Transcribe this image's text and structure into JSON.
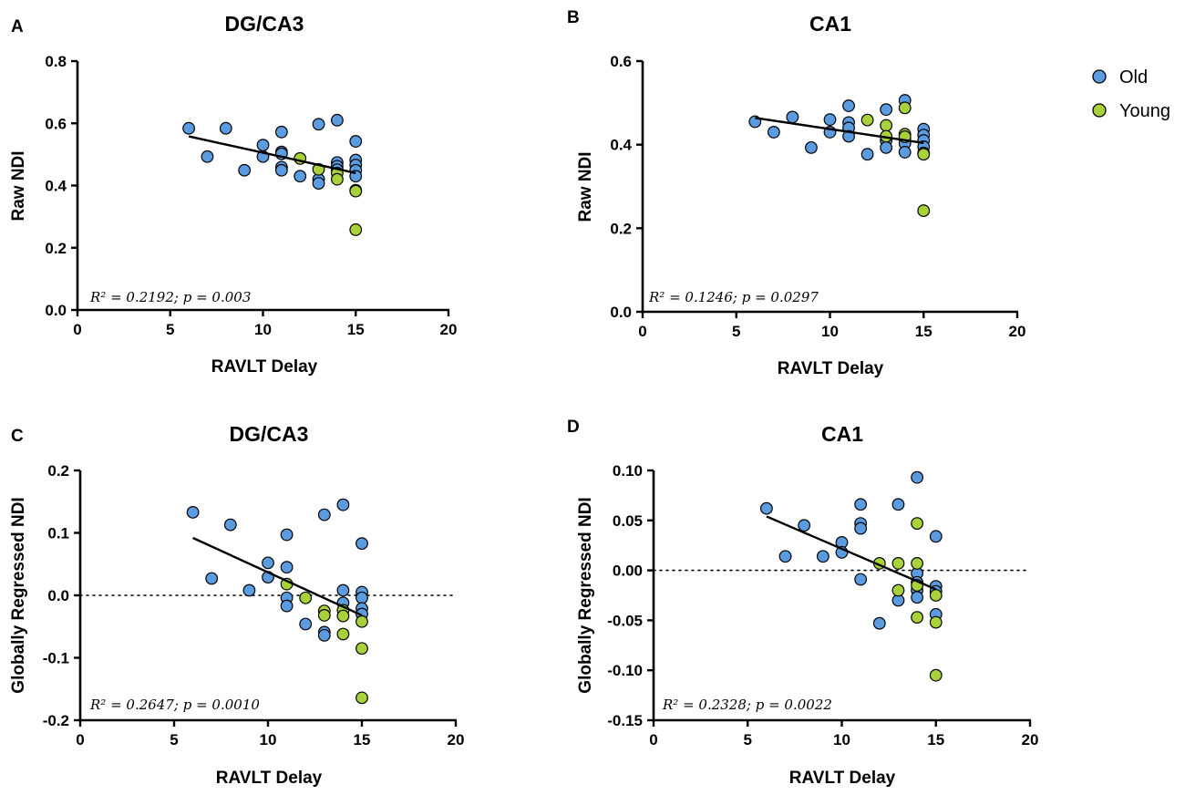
{
  "colors": {
    "old": "#5B9BE0",
    "young": "#A9D13A",
    "axis": "#000000"
  },
  "legend": {
    "position": "top-right",
    "entries": [
      {
        "label": "Old",
        "color": "#5B9BE0"
      },
      {
        "label": "Young",
        "color": "#A9D13A"
      }
    ]
  },
  "chart_data": [
    {
      "type": "scatter",
      "panel": "A",
      "title": "DG/CA3",
      "xlabel": "RAVLT Delay",
      "ylabel": "Raw NDI",
      "xlim": [
        0,
        20
      ],
      "ylim": [
        0,
        0.8
      ],
      "xticks": [
        0,
        5,
        10,
        15,
        20
      ],
      "yticks": [
        0.0,
        0.2,
        0.4,
        0.6,
        0.8
      ],
      "ytick_labels": [
        "0.0",
        "0.2",
        "0.4",
        "0.6",
        "0.8"
      ],
      "zero_line": false,
      "annotation": "R² = 0.2192; p = 0.003",
      "regression": {
        "x": [
          6,
          15
        ],
        "y": [
          0.558,
          0.44
        ]
      },
      "series": [
        {
          "name": "Old",
          "points": [
            [
              6,
              0.584
            ],
            [
              7,
              0.493
            ],
            [
              8,
              0.584
            ],
            [
              9,
              0.449
            ],
            [
              10,
              0.53
            ],
            [
              10,
              0.493
            ],
            [
              11,
              0.572
            ],
            [
              11,
              0.508
            ],
            [
              11,
              0.502
            ],
            [
              11,
              0.459
            ],
            [
              11,
              0.449
            ],
            [
              12,
              0.43
            ],
            [
              13,
              0.597
            ],
            [
              13,
              0.42
            ],
            [
              13,
              0.407
            ],
            [
              14,
              0.61
            ],
            [
              14,
              0.474
            ],
            [
              14,
              0.462
            ],
            [
              14,
              0.451
            ],
            [
              15,
              0.542
            ],
            [
              15,
              0.482
            ],
            [
              15,
              0.466
            ],
            [
              15,
              0.449
            ],
            [
              15,
              0.43
            ]
          ]
        },
        {
          "name": "Young",
          "points": [
            [
              12,
              0.487
            ],
            [
              13,
              0.452
            ],
            [
              14,
              0.44
            ],
            [
              14,
              0.42
            ],
            [
              15,
              0.385
            ],
            [
              15,
              0.382
            ],
            [
              15,
              0.258
            ]
          ]
        }
      ]
    },
    {
      "type": "scatter",
      "panel": "B",
      "title": "CA1",
      "xlabel": "RAVLT Delay",
      "ylabel": "Raw NDI",
      "xlim": [
        0,
        20
      ],
      "ylim": [
        0,
        0.6
      ],
      "xticks": [
        0,
        5,
        10,
        15,
        20
      ],
      "yticks": [
        0.0,
        0.2,
        0.4,
        0.6
      ],
      "ytick_labels": [
        "0.0",
        "0.2",
        "0.4",
        "0.6"
      ],
      "zero_line": false,
      "annotation": "R² = 0.1246; p = 0.0297",
      "regression": {
        "x": [
          6,
          15
        ],
        "y": [
          0.464,
          0.404
        ]
      },
      "series": [
        {
          "name": "Old",
          "points": [
            [
              6,
              0.455
            ],
            [
              7,
              0.43
            ],
            [
              8,
              0.466
            ],
            [
              9,
              0.393
            ],
            [
              10,
              0.46
            ],
            [
              10,
              0.43
            ],
            [
              11,
              0.493
            ],
            [
              11,
              0.453
            ],
            [
              11,
              0.44
            ],
            [
              11,
              0.42
            ],
            [
              12,
              0.377
            ],
            [
              13,
              0.484
            ],
            [
              13,
              0.41
            ],
            [
              13,
              0.393
            ],
            [
              14,
              0.506
            ],
            [
              14,
              0.415
            ],
            [
              14,
              0.403
            ],
            [
              14,
              0.382
            ],
            [
              15,
              0.437
            ],
            [
              15,
              0.423
            ],
            [
              15,
              0.41
            ],
            [
              15,
              0.395
            ],
            [
              15,
              0.38
            ]
          ]
        },
        {
          "name": "Young",
          "points": [
            [
              12,
              0.459
            ],
            [
              13,
              0.446
            ],
            [
              13,
              0.42
            ],
            [
              14,
              0.488
            ],
            [
              14,
              0.425
            ],
            [
              14,
              0.419
            ],
            [
              15,
              0.377
            ],
            [
              15,
              0.242
            ]
          ]
        }
      ]
    },
    {
      "type": "scatter",
      "panel": "C",
      "title": "DG/CA3",
      "xlabel": "RAVLT Delay",
      "ylabel": "Globally Regressed NDI",
      "xlim": [
        0,
        20
      ],
      "ylim": [
        -0.2,
        0.2
      ],
      "xticks": [
        0,
        5,
        10,
        15,
        20
      ],
      "yticks": [
        -0.2,
        -0.1,
        0.0,
        0.1,
        0.2
      ],
      "ytick_labels": [
        "-0.2",
        "-0.1",
        "0.0",
        "0.1",
        "0.2"
      ],
      "zero_line": true,
      "annotation": "R² = 0.2647; p = 0.0010",
      "regression": {
        "x": [
          6,
          15
        ],
        "y": [
          0.092,
          -0.032
        ]
      },
      "series": [
        {
          "name": "Old",
          "points": [
            [
              6,
              0.133
            ],
            [
              7,
              0.027
            ],
            [
              8,
              0.113
            ],
            [
              9,
              0.008
            ],
            [
              10,
              0.052
            ],
            [
              10,
              0.029
            ],
            [
              11,
              0.097
            ],
            [
              11,
              0.045
            ],
            [
              11,
              -0.004
            ],
            [
              11,
              -0.017
            ],
            [
              12,
              -0.046
            ],
            [
              13,
              0.129
            ],
            [
              13,
              -0.059
            ],
            [
              13,
              -0.064
            ],
            [
              14,
              0.145
            ],
            [
              14,
              0.008
            ],
            [
              14,
              -0.012
            ],
            [
              15,
              0.083
            ],
            [
              15,
              0.005
            ],
            [
              15,
              -0.004
            ],
            [
              15,
              -0.021
            ],
            [
              15,
              -0.03
            ]
          ]
        },
        {
          "name": "Young",
          "points": [
            [
              11,
              0.018
            ],
            [
              12,
              -0.004
            ],
            [
              13,
              -0.025
            ],
            [
              13,
              -0.032
            ],
            [
              14,
              -0.024
            ],
            [
              14,
              -0.033
            ],
            [
              14,
              -0.062
            ],
            [
              15,
              -0.042
            ],
            [
              15,
              -0.085
            ],
            [
              15,
              -0.164
            ]
          ]
        }
      ]
    },
    {
      "type": "scatter",
      "panel": "D",
      "title": "CA1",
      "xlabel": "RAVLT Delay",
      "ylabel": "Globally Regressed NDI",
      "xlim": [
        0,
        20
      ],
      "ylim": [
        -0.15,
        0.1
      ],
      "xticks": [
        0,
        5,
        10,
        15,
        20
      ],
      "yticks": [
        -0.15,
        -0.1,
        -0.05,
        0.0,
        0.05,
        0.1
      ],
      "ytick_labels": [
        "-0.15",
        "-0.10",
        "-0.05",
        "0.00",
        "0.05",
        "0.10"
      ],
      "zero_line": true,
      "annotation": "R² = 0.2328; p = 0.0022",
      "regression": {
        "x": [
          6,
          15
        ],
        "y": [
          0.054,
          -0.019
        ]
      },
      "series": [
        {
          "name": "Old",
          "points": [
            [
              6,
              0.062
            ],
            [
              7,
              0.014
            ],
            [
              8,
              0.045
            ],
            [
              9,
              0.014
            ],
            [
              10,
              0.028
            ],
            [
              10,
              0.018
            ],
            [
              11,
              0.066
            ],
            [
              11,
              0.047
            ],
            [
              11,
              0.042
            ],
            [
              11,
              -0.009
            ],
            [
              12,
              -0.053
            ],
            [
              13,
              0.066
            ],
            [
              13,
              -0.03
            ],
            [
              14,
              0.093
            ],
            [
              14,
              -0.003
            ],
            [
              14,
              -0.012
            ],
            [
              14,
              -0.02
            ],
            [
              14,
              -0.027
            ],
            [
              15,
              0.034
            ],
            [
              15,
              -0.016
            ],
            [
              15,
              -0.021
            ],
            [
              15,
              -0.044
            ]
          ]
        },
        {
          "name": "Young",
          "points": [
            [
              12,
              0.007
            ],
            [
              13,
              0.007
            ],
            [
              13,
              -0.02
            ],
            [
              14,
              0.047
            ],
            [
              14,
              0.007
            ],
            [
              14,
              -0.015
            ],
            [
              14,
              -0.047
            ],
            [
              15,
              -0.025
            ],
            [
              15,
              -0.052
            ],
            [
              15,
              -0.105
            ]
          ]
        }
      ]
    }
  ]
}
